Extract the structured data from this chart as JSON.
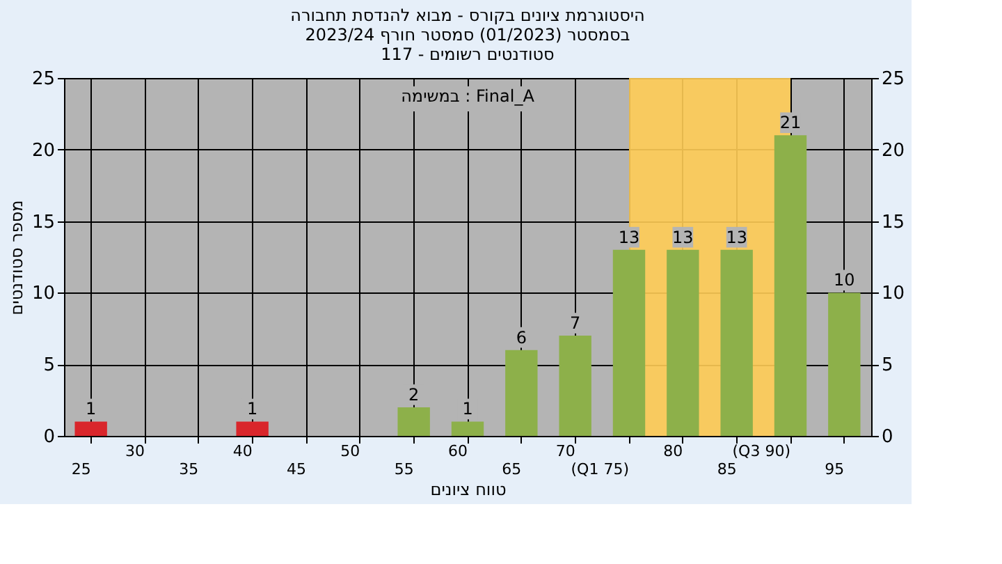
{
  "chart_data": {
    "type": "bar",
    "title": [
      "היסטוגרמת ציונים בקורס - מבוא להנדסת תחבורה",
      "בסמסטר  (01/2023)  סמסטר חורף 2023/24",
      "סטודנטים רשומים - 117"
    ],
    "xlabel": "טווח ציונים",
    "ylabel": "מספר סטודנטים",
    "annotations": [
      "במשימה : Final_A"
    ],
    "categories": [
      "25",
      "30",
      "35",
      "40",
      "45",
      "50",
      "55",
      "60",
      "65",
      "70",
      "(Q1 75)",
      "80",
      "85",
      "(Q3 90)",
      "95"
    ],
    "values": [
      1,
      0,
      0,
      1,
      0,
      0,
      2,
      1,
      6,
      7,
      13,
      13,
      13,
      21,
      10
    ],
    "colors": [
      "#d9262b",
      "#8db04a",
      "#8db04a",
      "#d9262b",
      "#8db04a",
      "#8db04a",
      "#8db04a",
      "#8db04a",
      "#8db04a",
      "#8db04a",
      "#8db04a",
      "#8db04a",
      "#8db04a",
      "#8db04a",
      "#8db04a"
    ],
    "value_labels": [
      "1",
      null,
      null,
      "1",
      null,
      null,
      "2",
      "1",
      "6",
      "7",
      "13",
      "13",
      "13",
      "21",
      "10"
    ],
    "ylim": [
      0,
      25
    ],
    "yticks": [
      0,
      5,
      10,
      15,
      20,
      25
    ],
    "y2lim": [
      0,
      25
    ],
    "y2ticks": [
      0,
      5,
      10,
      15,
      20,
      25
    ],
    "bands": [
      {
        "axis": "x",
        "from": "(Q1 75)",
        "to": "(Q3 90)",
        "color": "#ffcc55"
      }
    ],
    "grid": true
  }
}
